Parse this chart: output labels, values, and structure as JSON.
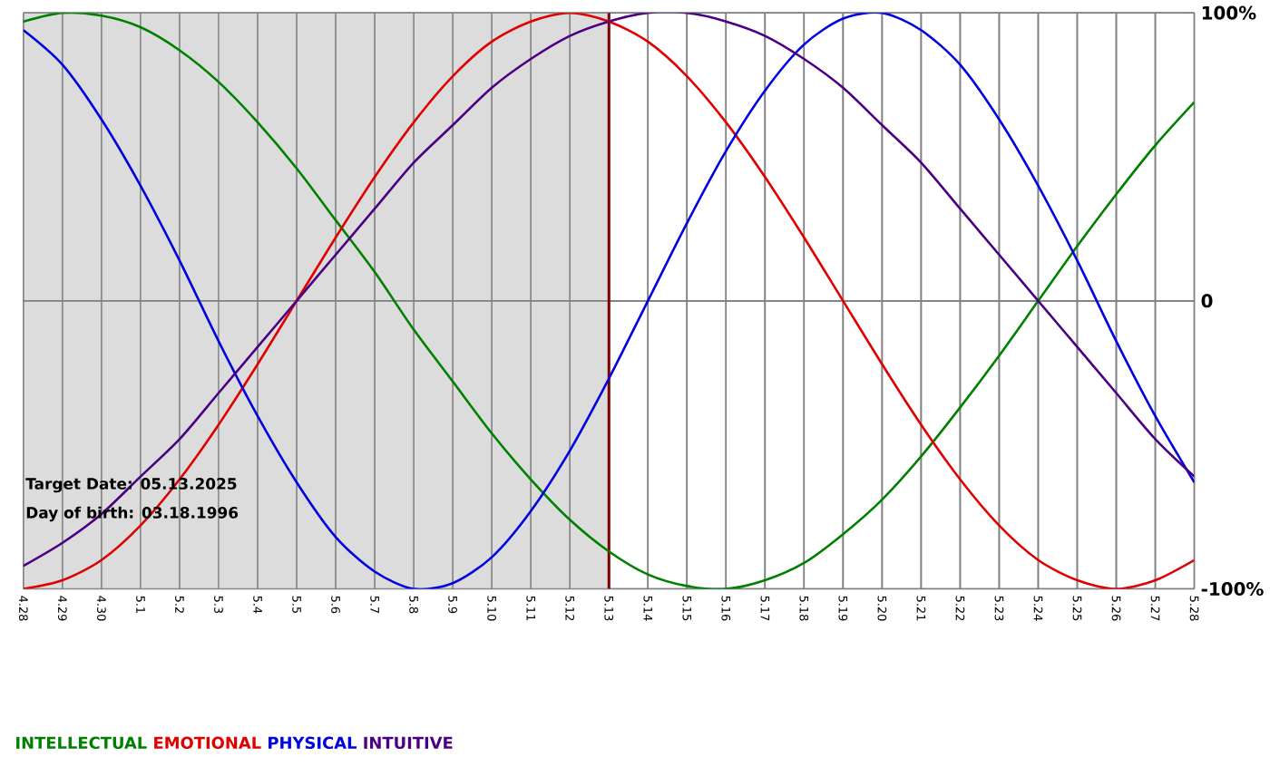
{
  "chart_data": {
    "type": "line",
    "categories": [
      "4.28",
      "4.29",
      "4.30",
      "5.1",
      "5.2",
      "5.3",
      "5.4",
      "5.5",
      "5.6",
      "5.7",
      "5.8",
      "5.9",
      "5.10",
      "5.11",
      "5.12",
      "5.13",
      "5.14",
      "5.15",
      "5.16",
      "5.17",
      "5.18",
      "5.19",
      "5.20",
      "5.21",
      "5.22",
      "5.23",
      "5.24",
      "5.25",
      "5.26",
      "5.27",
      "5.28"
    ],
    "series": [
      {
        "name": "INTELLECTUAL",
        "color": "#008000",
        "values": [
          97,
          100,
          99,
          95,
          87,
          76,
          62,
          46,
          28,
          10,
          -10,
          -28,
          -46,
          -62,
          -76,
          -87,
          -95,
          -99,
          -100,
          -97,
          -91,
          -81,
          -69,
          -54,
          -37,
          -19,
          0,
          19,
          37,
          54,
          69
        ]
      },
      {
        "name": "EMOTIONAL",
        "color": "#e00000",
        "values": [
          -100,
          -97,
          -90,
          -78,
          -62,
          -43,
          -22,
          0,
          22,
          43,
          62,
          78,
          90,
          97,
          100,
          97,
          90,
          78,
          62,
          43,
          22,
          0,
          -22,
          -43,
          -62,
          -78,
          -90,
          -97,
          -100,
          -97,
          -90
        ]
      },
      {
        "name": "PHYSICAL",
        "color": "#0000e0",
        "values": [
          94,
          82,
          63,
          40,
          14,
          -14,
          -40,
          -63,
          -82,
          -94,
          -100,
          -98,
          -89,
          -73,
          -52,
          -27,
          0,
          27,
          52,
          73,
          89,
          98,
          100,
          94,
          82,
          63,
          40,
          14,
          -14,
          -40,
          -63
        ]
      },
      {
        "name": "INTUITIVE",
        "color": "#4b0082",
        "values": [
          -92,
          -84,
          -74,
          -61,
          -48,
          -32,
          -16,
          0,
          16,
          32,
          48,
          61,
          74,
          84,
          92,
          97,
          100,
          100,
          97,
          92,
          84,
          74,
          61,
          48,
          32,
          16,
          0,
          -16,
          -32,
          -48,
          -61
        ]
      }
    ],
    "ylim": [
      -100,
      100
    ],
    "yticks": [
      {
        "value": 100,
        "label": "100%"
      },
      0,
      {
        "value": -100,
        "label": "-100%"
      }
    ],
    "grid": true,
    "legend": "bottom",
    "marker": "none",
    "line_style": "solid",
    "bands": [
      {
        "axis": "x",
        "from": "4.28",
        "to": "5.13",
        "color": "#dcdcdc"
      }
    ],
    "ref_lines": [
      {
        "axis": "x",
        "value": "5.13",
        "color": "#800000"
      }
    ],
    "annotations": [
      "Target Date: 05.13.2025",
      "Day of birth: 03.18.1996"
    ]
  }
}
